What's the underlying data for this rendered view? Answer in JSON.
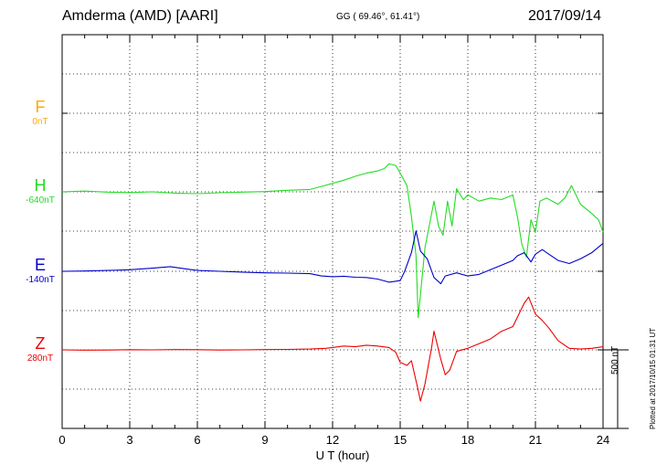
{
  "header": {
    "station": "Amderma (AMD)  [AARI]",
    "coords": "GG ( 69.46°,  61.41°)",
    "date": "2017/09/14"
  },
  "footer": {
    "plotted": "Plotted at 2017/10/15 01:31  UT"
  },
  "chart_data": {
    "type": "line",
    "title": "",
    "xlabel": "U T (hour)",
    "ylabel": "",
    "xlim": [
      0,
      24
    ],
    "x_ticks": [
      "0",
      "3",
      "6",
      "9",
      "12",
      "15",
      "18",
      "21",
      "24"
    ],
    "grid": true,
    "scale_bar": "500 nT",
    "components": [
      {
        "name": "F",
        "baseline": "0nT",
        "color": "#ffaa00",
        "points": []
      },
      {
        "name": "H",
        "baseline": "-640nT",
        "color": "#22dd22",
        "points": [
          [
            0,
            -640
          ],
          [
            1,
            -635
          ],
          [
            2,
            -642
          ],
          [
            3,
            -645
          ],
          [
            4,
            -640
          ],
          [
            5,
            -648
          ],
          [
            6,
            -652
          ],
          [
            7,
            -646
          ],
          [
            8,
            -642
          ],
          [
            9,
            -638
          ],
          [
            10,
            -630
          ],
          [
            11,
            -625
          ],
          [
            11.5,
            -605
          ],
          [
            12,
            -585
          ],
          [
            12.5,
            -565
          ],
          [
            13,
            -540
          ],
          [
            13.5,
            -520
          ],
          [
            14,
            -505
          ],
          [
            14.3,
            -490
          ],
          [
            14.5,
            -460
          ],
          [
            14.8,
            -470
          ],
          [
            15,
            -520
          ],
          [
            15.3,
            -600
          ],
          [
            15.5,
            -800
          ],
          [
            15.7,
            -1050
          ],
          [
            15.8,
            -1450
          ],
          [
            15.9,
            -1300
          ],
          [
            16.1,
            -1000
          ],
          [
            16.3,
            -850
          ],
          [
            16.5,
            -700
          ],
          [
            16.7,
            -860
          ],
          [
            16.9,
            -920
          ],
          [
            17.1,
            -700
          ],
          [
            17.3,
            -860
          ],
          [
            17.5,
            -620
          ],
          [
            17.8,
            -690
          ],
          [
            18,
            -660
          ],
          [
            18.5,
            -700
          ],
          [
            19,
            -680
          ],
          [
            19.5,
            -690
          ],
          [
            20,
            -660
          ],
          [
            20.2,
            -800
          ],
          [
            20.4,
            -980
          ],
          [
            20.6,
            -1060
          ],
          [
            20.8,
            -820
          ],
          [
            21,
            -900
          ],
          [
            21.2,
            -700
          ],
          [
            21.5,
            -680
          ],
          [
            22,
            -720
          ],
          [
            22.3,
            -680
          ],
          [
            22.6,
            -600
          ],
          [
            23,
            -720
          ],
          [
            23.5,
            -780
          ],
          [
            23.8,
            -820
          ],
          [
            24,
            -900
          ]
        ]
      },
      {
        "name": "E",
        "baseline": "-140nT",
        "color": "#0000cc",
        "points": [
          [
            0,
            -140
          ],
          [
            1,
            -138
          ],
          [
            2,
            -135
          ],
          [
            3,
            -130
          ],
          [
            4,
            -120
          ],
          [
            4.8,
            -110
          ],
          [
            5.5,
            -125
          ],
          [
            6,
            -135
          ],
          [
            7,
            -140
          ],
          [
            8,
            -145
          ],
          [
            9,
            -150
          ],
          [
            10,
            -152
          ],
          [
            11,
            -155
          ],
          [
            11.5,
            -170
          ],
          [
            12,
            -175
          ],
          [
            12.5,
            -172
          ],
          [
            13,
            -178
          ],
          [
            13.5,
            -180
          ],
          [
            14,
            -190
          ],
          [
            14.5,
            -210
          ],
          [
            15,
            -200
          ],
          [
            15.2,
            -140
          ],
          [
            15.5,
            -20
          ],
          [
            15.7,
            120
          ],
          [
            15.9,
            -10
          ],
          [
            16.2,
            -60
          ],
          [
            16.5,
            -180
          ],
          [
            16.8,
            -220
          ],
          [
            17,
            -170
          ],
          [
            17.5,
            -150
          ],
          [
            18,
            -170
          ],
          [
            18.5,
            -160
          ],
          [
            19,
            -130
          ],
          [
            19.5,
            -100
          ],
          [
            20,
            -70
          ],
          [
            20.2,
            -40
          ],
          [
            20.5,
            -20
          ],
          [
            20.8,
            -80
          ],
          [
            21,
            -30
          ],
          [
            21.3,
            0
          ],
          [
            21.6,
            -30
          ],
          [
            22,
            -70
          ],
          [
            22.5,
            -90
          ],
          [
            23,
            -60
          ],
          [
            23.5,
            -20
          ],
          [
            24,
            40
          ]
        ]
      },
      {
        "name": "Z",
        "baseline": "280nT",
        "color": "#ee0000",
        "points": [
          [
            0,
            280
          ],
          [
            1,
            278
          ],
          [
            2,
            279
          ],
          [
            3,
            281
          ],
          [
            4,
            280
          ],
          [
            5,
            282
          ],
          [
            6,
            281
          ],
          [
            7,
            279
          ],
          [
            8,
            280
          ],
          [
            9,
            282
          ],
          [
            10,
            283
          ],
          [
            11,
            285
          ],
          [
            11.7,
            290
          ],
          [
            12,
            295
          ],
          [
            12.5,
            305
          ],
          [
            13,
            300
          ],
          [
            13.5,
            310
          ],
          [
            14,
            305
          ],
          [
            14.5,
            295
          ],
          [
            14.8,
            265
          ],
          [
            15,
            200
          ],
          [
            15.3,
            180
          ],
          [
            15.5,
            210
          ],
          [
            15.8,
            20
          ],
          [
            15.9,
            -50
          ],
          [
            16.1,
            60
          ],
          [
            16.4,
            300
          ],
          [
            16.5,
            400
          ],
          [
            16.8,
            220
          ],
          [
            17,
            120
          ],
          [
            17.2,
            150
          ],
          [
            17.5,
            270
          ],
          [
            18,
            290
          ],
          [
            18.5,
            320
          ],
          [
            19,
            350
          ],
          [
            19.5,
            400
          ],
          [
            20,
            430
          ],
          [
            20.3,
            520
          ],
          [
            20.5,
            580
          ],
          [
            20.7,
            620
          ],
          [
            21,
            510
          ],
          [
            21.3,
            470
          ],
          [
            21.6,
            420
          ],
          [
            22,
            340
          ],
          [
            22.5,
            290
          ],
          [
            23,
            285
          ],
          [
            23.5,
            290
          ],
          [
            24,
            300
          ]
        ]
      }
    ]
  }
}
